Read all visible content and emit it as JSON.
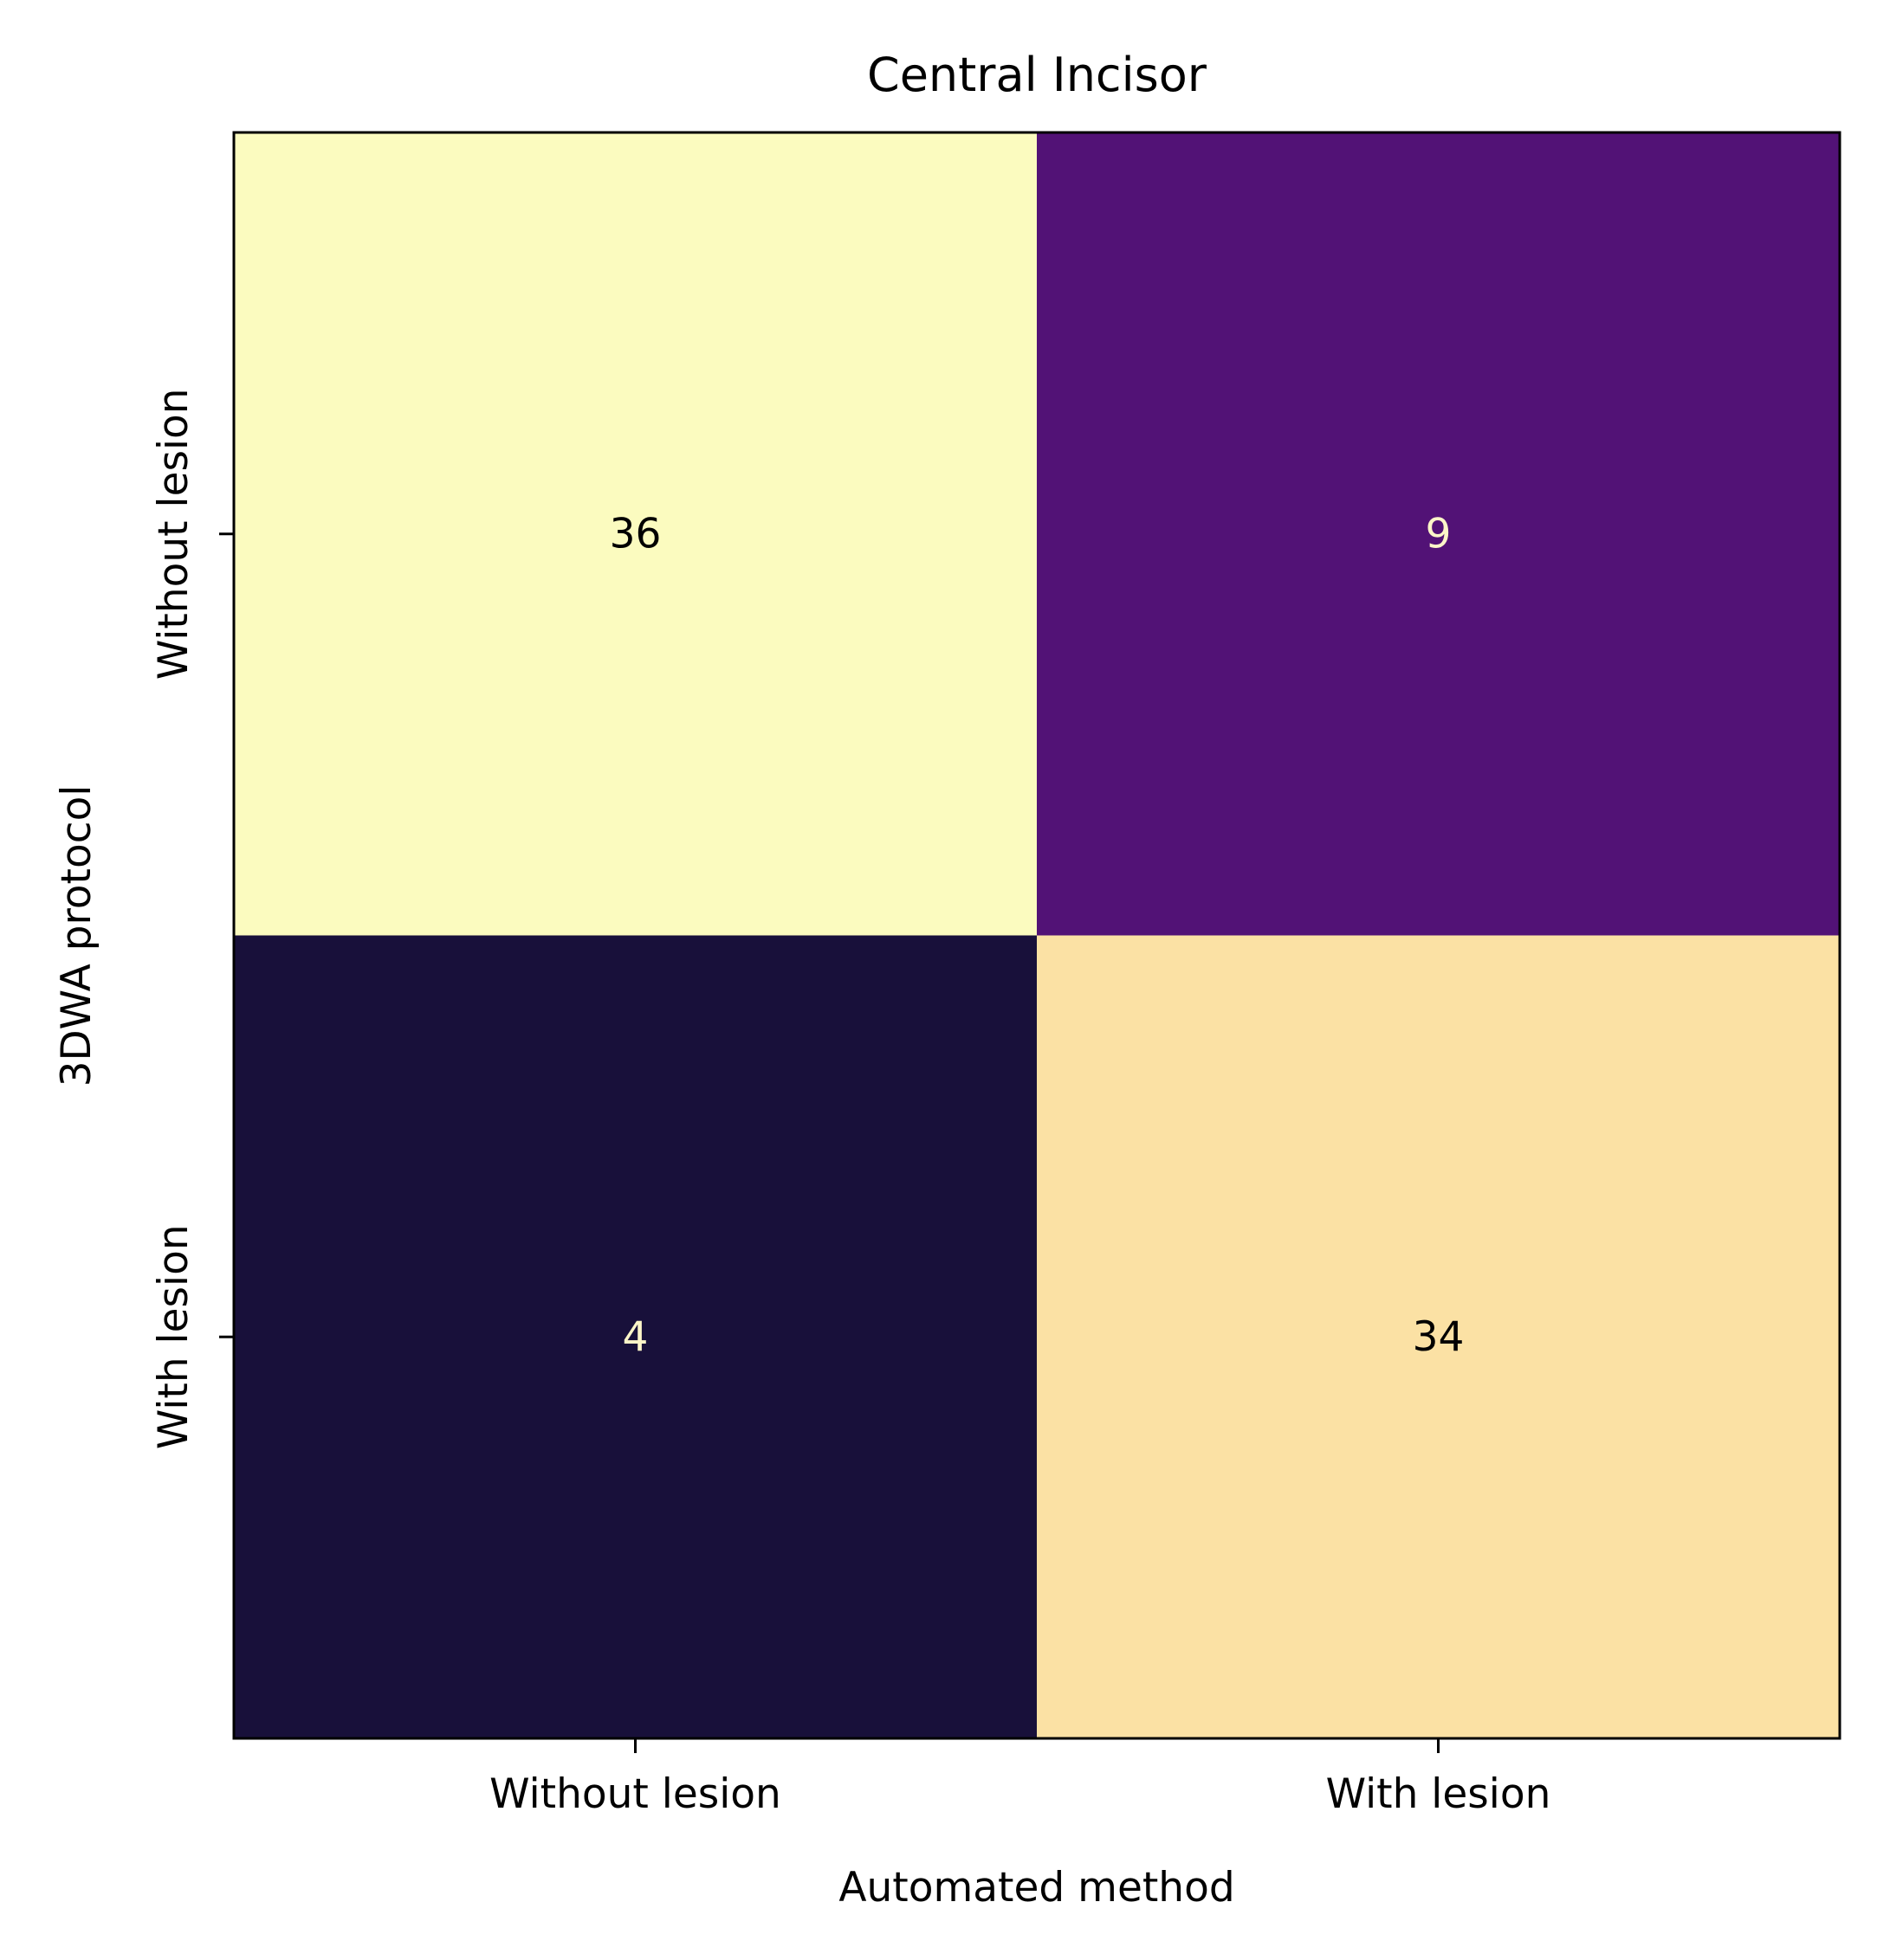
{
  "chart_data": {
    "type": "heatmap",
    "title": "Central Incisor",
    "xlabel": "Automated method",
    "ylabel": "3DWA protocol",
    "x_categories": [
      "Without lesion",
      "With lesion"
    ],
    "y_categories": [
      "Without lesion",
      "With lesion"
    ],
    "values": [
      [
        36,
        9
      ],
      [
        4,
        34
      ]
    ],
    "colormap": "magma",
    "colorbar": false,
    "grid": false,
    "cell_colors": [
      [
        "#fbfbbf",
        "#521276"
      ],
      [
        "#18103a",
        "#fbe1a4"
      ]
    ],
    "cell_text_colors": [
      [
        "#000000",
        "#fcf5c8"
      ],
      [
        "#fcf5c8",
        "#000000"
      ]
    ]
  }
}
